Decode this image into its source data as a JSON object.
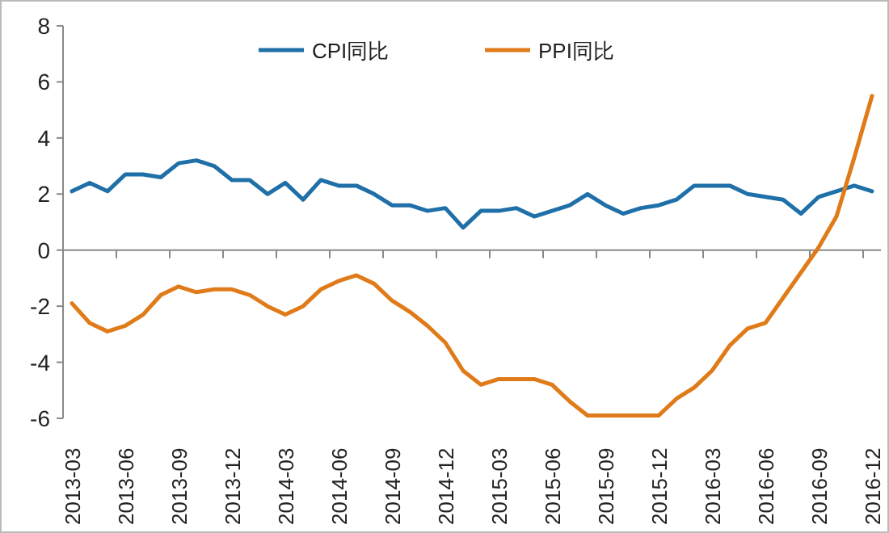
{
  "chart_data": {
    "type": "line",
    "categories": [
      "2013-03",
      null,
      null,
      "2013-06",
      null,
      null,
      "2013-09",
      null,
      null,
      "2013-12",
      null,
      null,
      "2014-03",
      null,
      null,
      "2014-06",
      null,
      null,
      "2014-09",
      null,
      null,
      "2014-12",
      null,
      null,
      "2015-03",
      null,
      null,
      "2015-06",
      null,
      null,
      "2015-09",
      null,
      null,
      "2015-12",
      null,
      null,
      "2016-03",
      null,
      null,
      "2016-06",
      null,
      null,
      "2016-09",
      null,
      null,
      "2016-12"
    ],
    "series": [
      {
        "name": "CPI同比",
        "color": "#1f6fa8",
        "values": [
          2.1,
          2.4,
          2.1,
          2.7,
          2.7,
          2.6,
          3.1,
          3.2,
          3.0,
          2.5,
          2.5,
          2.0,
          2.4,
          1.8,
          2.5,
          2.3,
          2.3,
          2.0,
          1.6,
          1.6,
          1.4,
          1.5,
          0.8,
          1.4,
          1.4,
          1.5,
          1.2,
          1.4,
          1.6,
          2.0,
          1.6,
          1.3,
          1.5,
          1.6,
          1.8,
          2.3,
          2.3,
          2.3,
          2.0,
          1.9,
          1.8,
          1.3,
          1.9,
          2.1,
          2.3,
          2.1
        ]
      },
      {
        "name": "PPI同比",
        "color": "#e07b1a",
        "values": [
          -1.9,
          -2.6,
          -2.9,
          -2.7,
          -2.3,
          -1.6,
          -1.3,
          -1.5,
          -1.4,
          -1.4,
          -1.6,
          -2.0,
          -2.3,
          -2.0,
          -1.4,
          -1.1,
          -0.9,
          -1.2,
          -1.8,
          -2.2,
          -2.7,
          -3.3,
          -4.3,
          -4.8,
          -4.6,
          -4.6,
          -4.6,
          -4.8,
          -5.4,
          -5.9,
          -5.9,
          -5.9,
          -5.9,
          -5.9,
          -5.3,
          -4.9,
          -4.3,
          -3.4,
          -2.8,
          -2.6,
          -1.7,
          -0.8,
          0.1,
          1.2,
          3.3,
          5.5
        ]
      }
    ],
    "ylim": [
      -6,
      8
    ],
    "yticks": [
      -6,
      -4,
      -2,
      0,
      2,
      4,
      6,
      8
    ],
    "legend": "top",
    "marker": "none",
    "line_style": "solid"
  }
}
